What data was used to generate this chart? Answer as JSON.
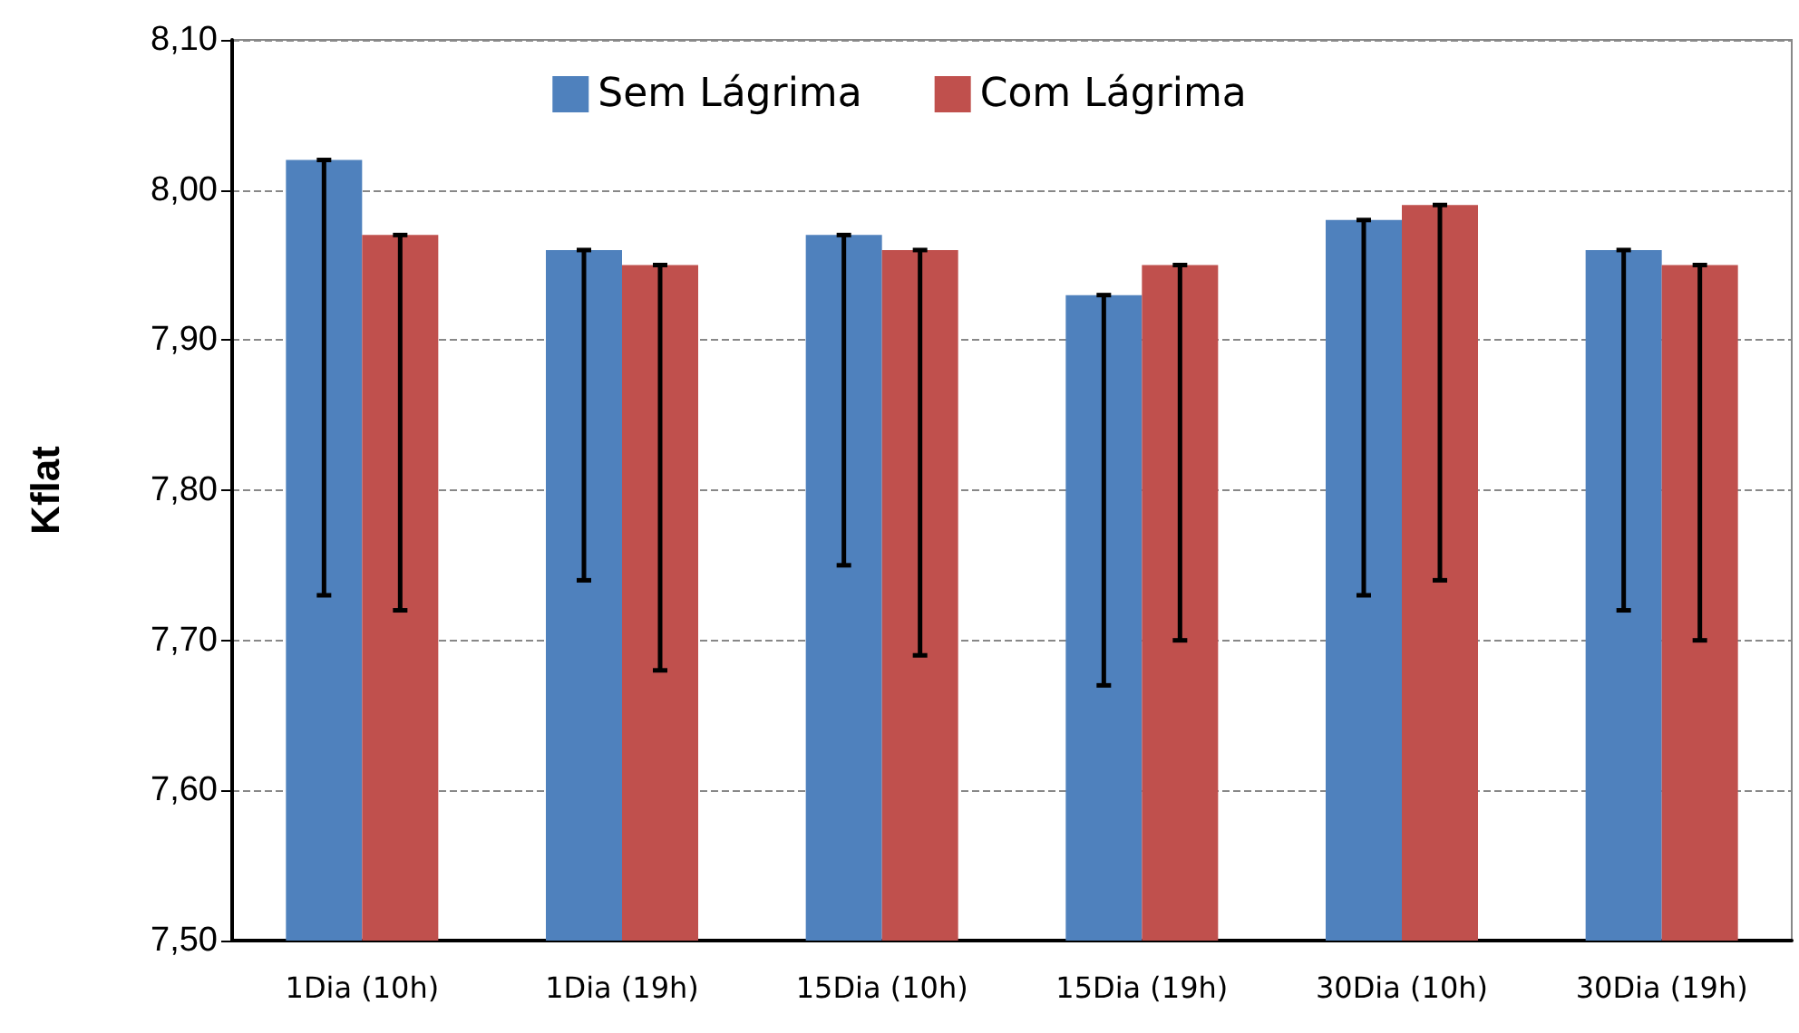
{
  "chart_data": {
    "type": "bar",
    "ylabel": "Kflat",
    "categories": [
      "1Dia (10h)",
      "1Dia (19h)",
      "15Dia (10h)",
      "15Dia (19h)",
      "30Dia (10h)",
      "30Dia (19h)"
    ],
    "series": [
      {
        "name": "Sem Lágrima",
        "color": "#4f81bd",
        "values": [
          8.02,
          7.96,
          7.97,
          7.93,
          7.98,
          7.96
        ],
        "errors": [
          [
            7.73,
            8.02
          ],
          [
            7.74,
            7.96
          ],
          [
            7.75,
            7.97
          ],
          [
            7.67,
            7.93
          ],
          [
            7.73,
            7.98
          ],
          [
            7.72,
            7.96
          ]
        ]
      },
      {
        "name": "Com Lágrima",
        "color": "#c0504d",
        "values": [
          7.97,
          7.95,
          7.96,
          7.95,
          7.99,
          7.95
        ],
        "errors": [
          [
            7.72,
            7.97
          ],
          [
            7.68,
            7.95
          ],
          [
            7.69,
            7.96
          ],
          [
            7.7,
            7.95
          ],
          [
            7.74,
            7.99
          ],
          [
            7.7,
            7.95
          ]
        ]
      }
    ],
    "ylim": [
      7.5,
      8.1
    ],
    "yticks": [
      {
        "value": 7.5,
        "label": "7,50"
      },
      {
        "value": 7.6,
        "label": "7,60"
      },
      {
        "value": 7.7,
        "label": "7,70"
      },
      {
        "value": 7.8,
        "label": "7,80"
      },
      {
        "value": 7.9,
        "label": "7,90"
      },
      {
        "value": 8.0,
        "label": "8,00"
      },
      {
        "value": 8.1,
        "label": "8,10"
      }
    ],
    "grid": "y",
    "legend": "top"
  }
}
